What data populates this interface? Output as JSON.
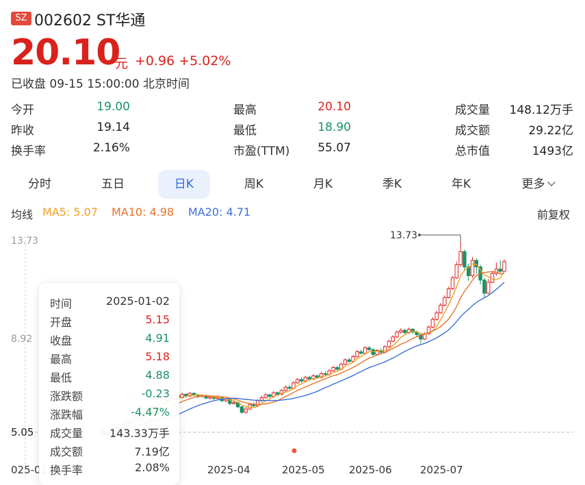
{
  "header": {
    "exchange_badge": "SZ",
    "code_name": "002602 ST华通",
    "price": "20.10",
    "unit": "元",
    "change": "+0.96 +5.02%",
    "status": "已收盘 09-15 15:00:00 北京时间"
  },
  "stats": [
    {
      "label": "今开",
      "value": "19.00",
      "color": "green"
    },
    {
      "label": "最高",
      "value": "20.10",
      "color": "red"
    },
    {
      "label": "成交量",
      "value": "148.12万手",
      "color": "neutral"
    },
    {
      "label": "昨收",
      "value": "19.14",
      "color": "neutral"
    },
    {
      "label": "最低",
      "value": "18.90",
      "color": "green"
    },
    {
      "label": "成交额",
      "value": "29.22亿",
      "color": "neutral"
    },
    {
      "label": "换手率",
      "value": "2.16%",
      "color": "neutral"
    },
    {
      "label": "市盈(TTM)",
      "value": "55.07",
      "color": "neutral"
    },
    {
      "label": "总市值",
      "value": "1493亿",
      "color": "neutral"
    }
  ],
  "tabs": [
    "分时",
    "五日",
    "日K",
    "周K",
    "月K",
    "季K",
    "年K",
    "更多"
  ],
  "active_tab": "日K",
  "ma": {
    "label": "均线",
    "ma5": "MA5: 5.07",
    "ma10": "MA10: 4.98",
    "ma20": "MA20: 4.71",
    "adjust": "前复权",
    "colors": {
      "ma5": "#f0a020",
      "ma10": "#e8702a",
      "ma20": "#3a6fd8"
    }
  },
  "chart_data": {
    "type": "candlestick",
    "y_labels": [
      "13.73",
      "8.92",
      "5.05"
    ],
    "max_label": "13.73",
    "x_ticks": [
      "025-01",
      "2025-04",
      "2025-05",
      "2025-06",
      "2025-07"
    ],
    "ylim": [
      4.6,
      14.0
    ],
    "colors": {
      "up": "#e02020",
      "down": "#179266"
    },
    "candles": [
      [
        5.15,
        4.91,
        5.18,
        4.88
      ],
      [
        4.91,
        5.02,
        5.08,
        4.85
      ],
      [
        5.02,
        5.1,
        5.2,
        4.98
      ],
      [
        5.1,
        5.25,
        5.32,
        5.05
      ],
      [
        5.25,
        5.2,
        5.35,
        5.12
      ],
      [
        5.2,
        5.38,
        5.45,
        5.15
      ],
      [
        5.38,
        5.55,
        5.62,
        5.3
      ],
      [
        5.55,
        5.48,
        5.65,
        5.4
      ],
      [
        5.48,
        5.7,
        5.78,
        5.45
      ],
      [
        5.7,
        5.85,
        5.95,
        5.65
      ],
      [
        5.85,
        5.78,
        5.92,
        5.7
      ],
      [
        5.78,
        6.05,
        6.12,
        5.75
      ],
      [
        6.05,
        6.22,
        6.3,
        6.0
      ],
      [
        6.22,
        6.1,
        6.28,
        6.02
      ],
      [
        6.1,
        6.35,
        6.42,
        6.05
      ],
      [
        6.35,
        6.55,
        6.62,
        6.3
      ],
      [
        6.55,
        6.48,
        6.66,
        6.4
      ],
      [
        6.48,
        6.6,
        6.7,
        6.42
      ],
      [
        6.6,
        6.72,
        6.8,
        6.55
      ],
      [
        6.72,
        6.62,
        6.78,
        6.5
      ],
      [
        6.62,
        6.78,
        6.85,
        6.58
      ],
      [
        6.78,
        6.7,
        6.82,
        6.62
      ],
      [
        6.7,
        6.82,
        6.88,
        6.65
      ],
      [
        6.82,
        6.75,
        6.86,
        6.68
      ],
      [
        6.75,
        6.68,
        6.8,
        6.6
      ],
      [
        6.68,
        6.72,
        6.78,
        6.62
      ],
      [
        6.72,
        6.6,
        6.76,
        6.55
      ],
      [
        6.6,
        6.65,
        6.7,
        6.52
      ],
      [
        6.65,
        6.58,
        6.7,
        6.5
      ],
      [
        6.58,
        6.62,
        6.68,
        6.52
      ],
      [
        6.62,
        6.48,
        6.66,
        6.42
      ],
      [
        6.48,
        6.55,
        6.6,
        6.4
      ],
      [
        6.55,
        6.35,
        6.58,
        6.28
      ],
      [
        6.35,
        6.4,
        6.48,
        6.3
      ],
      [
        6.4,
        6.2,
        6.45,
        6.15
      ],
      [
        6.2,
        5.95,
        6.25,
        5.88
      ],
      [
        5.95,
        6.1,
        6.18,
        5.9
      ],
      [
        6.1,
        6.3,
        6.38,
        6.05
      ],
      [
        6.3,
        6.25,
        6.4,
        6.18
      ],
      [
        6.25,
        6.48,
        6.55,
        6.2
      ],
      [
        6.48,
        6.62,
        6.7,
        6.42
      ],
      [
        6.62,
        6.75,
        6.82,
        6.58
      ],
      [
        6.75,
        6.68,
        6.8,
        6.6
      ],
      [
        6.68,
        6.85,
        6.92,
        6.62
      ],
      [
        6.85,
        6.78,
        6.9,
        6.7
      ],
      [
        6.78,
        6.95,
        7.02,
        6.72
      ],
      [
        6.95,
        7.1,
        7.18,
        6.9
      ],
      [
        7.1,
        7.05,
        7.2,
        6.98
      ],
      [
        7.05,
        7.3,
        7.38,
        7.0
      ],
      [
        7.3,
        7.45,
        7.52,
        7.25
      ],
      [
        7.45,
        7.38,
        7.55,
        7.3
      ],
      [
        7.38,
        7.55,
        7.62,
        7.32
      ],
      [
        7.55,
        7.48,
        7.62,
        7.4
      ],
      [
        7.48,
        7.62,
        7.7,
        7.42
      ],
      [
        7.62,
        7.55,
        7.68,
        7.48
      ],
      [
        7.55,
        7.72,
        7.8,
        7.5
      ],
      [
        7.72,
        7.68,
        7.82,
        7.6
      ],
      [
        7.68,
        7.85,
        7.92,
        7.62
      ],
      [
        7.85,
        8.0,
        8.08,
        7.8
      ],
      [
        8.0,
        7.92,
        8.08,
        7.85
      ],
      [
        7.92,
        8.15,
        8.22,
        7.88
      ],
      [
        8.15,
        8.35,
        8.42,
        8.1
      ],
      [
        8.35,
        8.28,
        8.45,
        8.2
      ],
      [
        8.28,
        8.5,
        8.58,
        8.22
      ],
      [
        8.5,
        8.72,
        8.8,
        8.45
      ],
      [
        8.72,
        8.65,
        8.82,
        8.58
      ],
      [
        8.65,
        8.9,
        8.98,
        8.6
      ],
      [
        8.9,
        8.82,
        8.98,
        8.75
      ],
      [
        8.82,
        8.6,
        8.88,
        8.52
      ],
      [
        8.6,
        8.78,
        8.85,
        8.55
      ],
      [
        8.78,
        8.7,
        8.88,
        8.62
      ],
      [
        8.7,
        8.95,
        9.02,
        8.65
      ],
      [
        8.95,
        9.2,
        9.28,
        8.9
      ],
      [
        9.2,
        9.4,
        9.48,
        9.15
      ],
      [
        9.4,
        9.62,
        9.7,
        9.35
      ],
      [
        9.62,
        9.7,
        9.8,
        9.55
      ],
      [
        9.7,
        9.6,
        9.78,
        9.52
      ],
      [
        9.6,
        9.75,
        9.82,
        9.55
      ],
      [
        9.75,
        9.62,
        9.8,
        9.55
      ],
      [
        9.62,
        9.5,
        9.68,
        9.4
      ],
      [
        9.5,
        9.3,
        9.55,
        9.1
      ],
      [
        9.3,
        9.55,
        9.62,
        9.25
      ],
      [
        9.55,
        9.85,
        9.92,
        9.5
      ],
      [
        9.85,
        10.2,
        10.3,
        9.8
      ],
      [
        10.2,
        10.5,
        10.6,
        10.15
      ],
      [
        10.5,
        10.85,
        10.95,
        10.45
      ],
      [
        10.85,
        11.2,
        11.3,
        10.8
      ],
      [
        11.2,
        11.6,
        11.7,
        11.15
      ],
      [
        11.6,
        12.1,
        12.2,
        11.55
      ],
      [
        12.1,
        12.7,
        12.85,
        12.05
      ],
      [
        12.7,
        13.3,
        13.73,
        12.6
      ],
      [
        13.3,
        12.6,
        13.4,
        12.4
      ],
      [
        12.6,
        12.2,
        12.75,
        11.95
      ],
      [
        12.2,
        12.9,
        13.05,
        12.1
      ],
      [
        12.9,
        12.6,
        13.0,
        12.3
      ],
      [
        12.6,
        12.0,
        12.7,
        11.8
      ],
      [
        12.0,
        11.4,
        12.1,
        11.2
      ],
      [
        11.4,
        11.9,
        12.05,
        11.35
      ],
      [
        11.9,
        12.3,
        12.4,
        11.85
      ],
      [
        12.3,
        12.5,
        12.8,
        12.2
      ],
      [
        12.5,
        12.4,
        12.9,
        12.3
      ],
      [
        12.4,
        12.85,
        12.95,
        12.35
      ]
    ]
  },
  "tooltip": {
    "rows": [
      {
        "k": "时间",
        "v": "2025-01-02",
        "c": "neutral"
      },
      {
        "k": "开盘",
        "v": "5.15",
        "c": "red"
      },
      {
        "k": "收盘",
        "v": "4.91",
        "c": "green"
      },
      {
        "k": "最高",
        "v": "5.18",
        "c": "red"
      },
      {
        "k": "最低",
        "v": "4.88",
        "c": "green"
      },
      {
        "k": "涨跌额",
        "v": "-0.23",
        "c": "green"
      },
      {
        "k": "涨跌幅",
        "v": "-4.47%",
        "c": "green"
      },
      {
        "k": "成交量",
        "v": "143.33万手",
        "c": "neutral"
      },
      {
        "k": "成交额",
        "v": "7.19亿",
        "c": "neutral"
      },
      {
        "k": "换手率",
        "v": "2.08%",
        "c": "neutral"
      }
    ]
  }
}
